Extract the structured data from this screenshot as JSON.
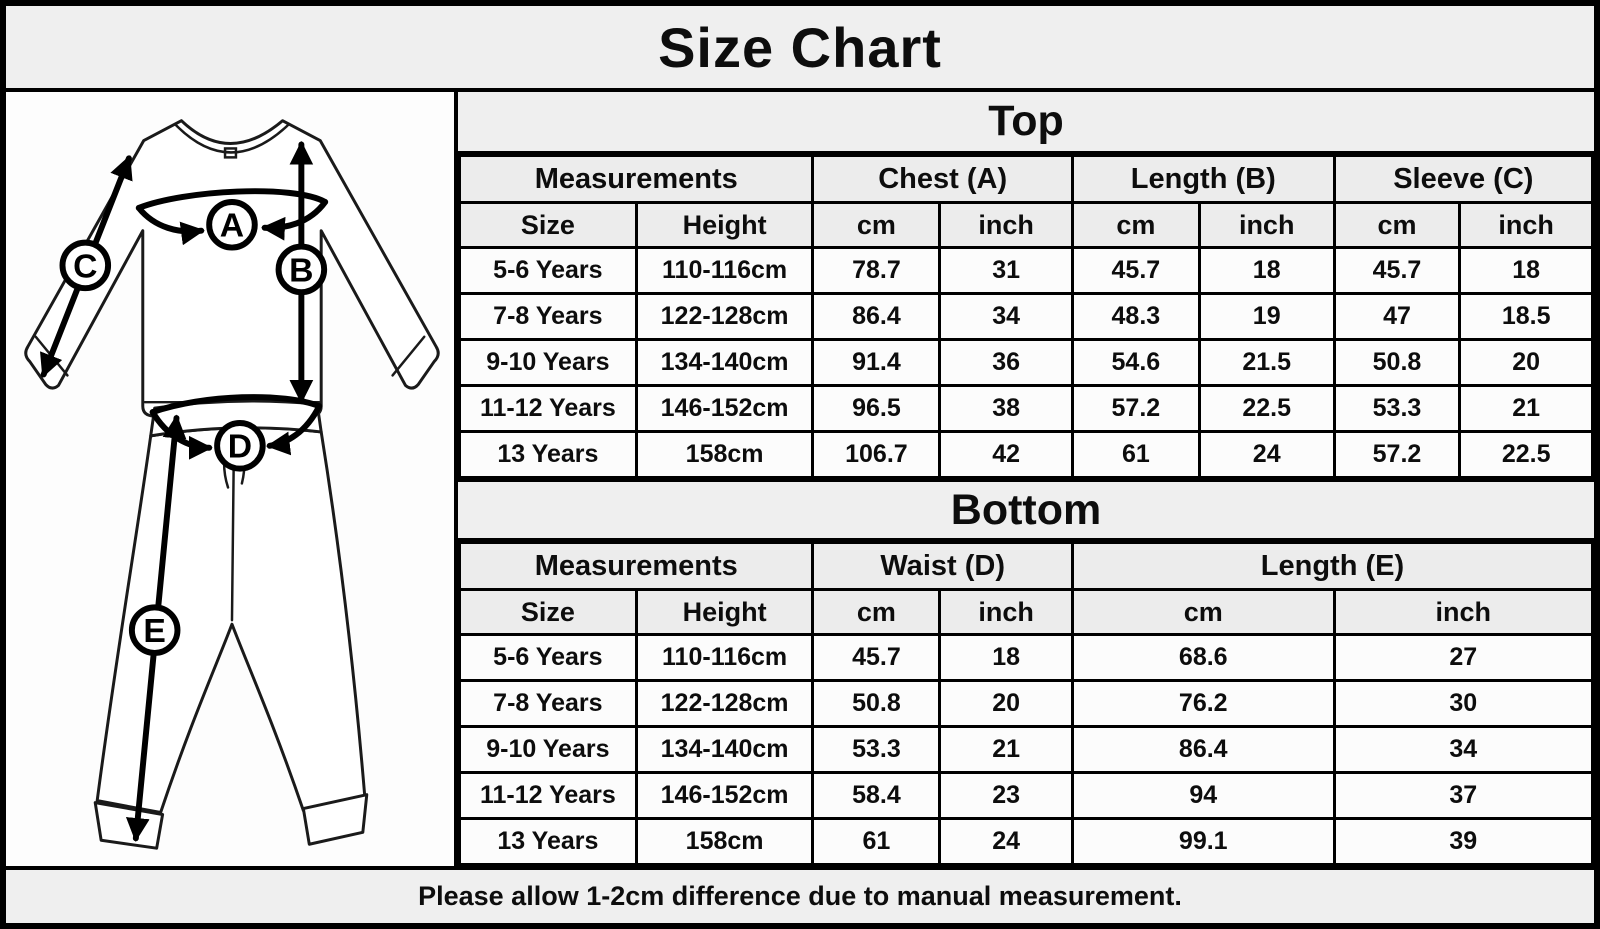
{
  "title": "Size Chart",
  "footer": {
    "note": "Please allow 1-2cm difference due to manual measurement."
  },
  "colors": {
    "border": "#000000",
    "header_bg": "#ececec",
    "band_bg": "#efefef",
    "cell_bg": "#fcfcfc",
    "text": "#0d0d0d"
  },
  "diagram": {
    "labels": {
      "chest": "A",
      "top_length": "B",
      "sleeve": "C",
      "waist": "D",
      "bottom_length": "E"
    }
  },
  "top_section": {
    "title": "Top",
    "group_headers": [
      {
        "label": "Measurements"
      },
      {
        "label": "Chest (A)"
      },
      {
        "label": "Length (B)"
      },
      {
        "label": "Sleeve (C)"
      }
    ],
    "sub_headers": [
      "Size",
      "Height",
      "cm",
      "inch",
      "cm",
      "inch",
      "cm",
      "inch"
    ],
    "rows": [
      [
        "5-6 Years",
        "110-116cm",
        "78.7",
        "31",
        "45.7",
        "18",
        "45.7",
        "18"
      ],
      [
        "7-8 Years",
        "122-128cm",
        "86.4",
        "34",
        "48.3",
        "19",
        "47",
        "18.5"
      ],
      [
        "9-10 Years",
        "134-140cm",
        "91.4",
        "36",
        "54.6",
        "21.5",
        "50.8",
        "20"
      ],
      [
        "11-12 Years",
        "146-152cm",
        "96.5",
        "38",
        "57.2",
        "22.5",
        "53.3",
        "21"
      ],
      [
        "13 Years",
        "158cm",
        "106.7",
        "42",
        "61",
        "24",
        "57.2",
        "22.5"
      ]
    ]
  },
  "bottom_section": {
    "title": "Bottom",
    "group_headers": [
      {
        "label": "Measurements"
      },
      {
        "label": "Waist (D)"
      },
      {
        "label": "Length (E)"
      }
    ],
    "sub_headers": [
      "Size",
      "Height",
      "cm",
      "inch",
      "cm",
      "inch"
    ],
    "rows": [
      [
        "5-6 Years",
        "110-116cm",
        "45.7",
        "18",
        "68.6",
        "27"
      ],
      [
        "7-8 Years",
        "122-128cm",
        "50.8",
        "20",
        "76.2",
        "30"
      ],
      [
        "9-10 Years",
        "134-140cm",
        "53.3",
        "21",
        "86.4",
        "34"
      ],
      [
        "11-12 Years",
        "146-152cm",
        "58.4",
        "23",
        "94",
        "37"
      ],
      [
        "13 Years",
        "158cm",
        "61",
        "24",
        "99.1",
        "39"
      ]
    ]
  },
  "chart_data": [
    {
      "type": "table",
      "title": "Top",
      "columns": [
        "Size",
        "Height",
        "Chest (A) cm",
        "Chest (A) inch",
        "Length (B) cm",
        "Length (B) inch",
        "Sleeve (C) cm",
        "Sleeve (C) inch"
      ],
      "rows": [
        [
          "5-6 Years",
          "110-116cm",
          78.7,
          31,
          45.7,
          18,
          45.7,
          18
        ],
        [
          "7-8 Years",
          "122-128cm",
          86.4,
          34,
          48.3,
          19,
          47,
          18.5
        ],
        [
          "9-10 Years",
          "134-140cm",
          91.4,
          36,
          54.6,
          21.5,
          50.8,
          20
        ],
        [
          "11-12 Years",
          "146-152cm",
          96.5,
          38,
          57.2,
          22.5,
          53.3,
          21
        ],
        [
          "13 Years",
          "158cm",
          106.7,
          42,
          61,
          24,
          57.2,
          22.5
        ]
      ]
    },
    {
      "type": "table",
      "title": "Bottom",
      "columns": [
        "Size",
        "Height",
        "Waist (D) cm",
        "Waist (D) inch",
        "Length (E) cm",
        "Length (E) inch"
      ],
      "rows": [
        [
          "5-6 Years",
          "110-116cm",
          45.7,
          18,
          68.6,
          27
        ],
        [
          "7-8 Years",
          "122-128cm",
          50.8,
          20,
          76.2,
          30
        ],
        [
          "9-10 Years",
          "134-140cm",
          53.3,
          21,
          86.4,
          34
        ],
        [
          "11-12 Years",
          "146-152cm",
          58.4,
          23,
          94,
          37
        ],
        [
          "13 Years",
          "158cm",
          61,
          24,
          99.1,
          39
        ]
      ]
    }
  ]
}
